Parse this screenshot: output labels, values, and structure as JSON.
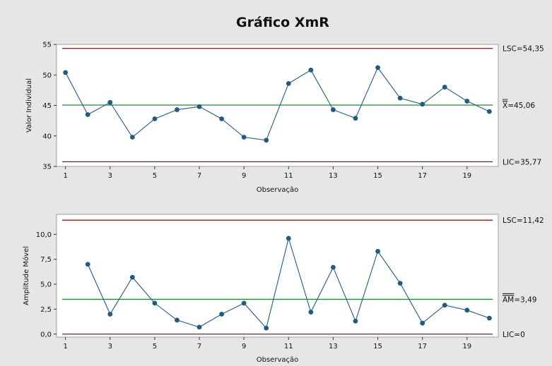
{
  "title": "Gráfico XmR",
  "colors": {
    "background": "#e6e6e6",
    "plot_area": "#ffffff",
    "limit_line": "#8b1a1a",
    "center_line": "#1e8c2e",
    "series": "#1f5b87"
  },
  "chart_data": [
    {
      "type": "line",
      "name": "individuals",
      "ylabel": "Valor Individual",
      "xlabel": "Observação",
      "ylim": [
        35,
        55
      ],
      "yticks": [
        35,
        40,
        45,
        50,
        55
      ],
      "ytick_labels": [
        "35",
        "40",
        "45",
        "50",
        "55"
      ],
      "xlim": [
        0.6,
        20.4
      ],
      "xticks": [
        1,
        3,
        5,
        7,
        9,
        11,
        13,
        15,
        17,
        19
      ],
      "xtick_labels": [
        "1",
        "3",
        "5",
        "7",
        "9",
        "11",
        "13",
        "15",
        "17",
        "19"
      ],
      "grid": false,
      "x": [
        1,
        2,
        3,
        4,
        5,
        6,
        7,
        8,
        9,
        10,
        11,
        12,
        13,
        14,
        15,
        16,
        17,
        18,
        19,
        20
      ],
      "values": [
        50.4,
        43.5,
        45.5,
        39.8,
        42.8,
        44.3,
        44.8,
        42.8,
        39.8,
        39.3,
        48.6,
        50.8,
        44.3,
        42.9,
        51.2,
        46.2,
        45.2,
        48.0,
        45.7,
        44.0
      ],
      "reference_lines": [
        {
          "kind": "limit",
          "value": 54.35,
          "label": "LSC=54,35"
        },
        {
          "kind": "center",
          "value": 45.06,
          "label_bar": "X",
          "label_rest": "=45,06"
        },
        {
          "kind": "limit",
          "value": 35.77,
          "label": "LIC=35,77"
        }
      ]
    },
    {
      "type": "line",
      "name": "moving-range",
      "ylabel": "Amplitude Móvel",
      "xlabel": "Observação",
      "ylim": [
        -0.3,
        12
      ],
      "yticks": [
        0,
        2.5,
        5,
        7.5,
        10
      ],
      "ytick_labels": [
        "0,0",
        "2,5",
        "5,0",
        "7,5",
        "10,0"
      ],
      "xlim": [
        0.6,
        20.4
      ],
      "xticks": [
        1,
        3,
        5,
        7,
        9,
        11,
        13,
        15,
        17,
        19
      ],
      "xtick_labels": [
        "1",
        "3",
        "5",
        "7",
        "9",
        "11",
        "13",
        "15",
        "17",
        "19"
      ],
      "grid": false,
      "x": [
        2,
        3,
        4,
        5,
        6,
        7,
        8,
        9,
        10,
        11,
        12,
        13,
        14,
        15,
        16,
        17,
        18,
        19,
        20
      ],
      "values": [
        7.0,
        2.0,
        5.7,
        3.1,
        1.4,
        0.7,
        2.0,
        3.1,
        0.6,
        9.6,
        2.2,
        6.7,
        1.3,
        8.3,
        5.1,
        1.1,
        2.9,
        2.4,
        1.6
      ],
      "reference_lines": [
        {
          "kind": "limit",
          "value": 11.42,
          "label": "LSC=11,42"
        },
        {
          "kind": "center",
          "value": 3.49,
          "label_bar": "AM",
          "label_rest": "=3,49"
        },
        {
          "kind": "limit",
          "value": 0,
          "label": "LIC=0"
        }
      ]
    }
  ]
}
